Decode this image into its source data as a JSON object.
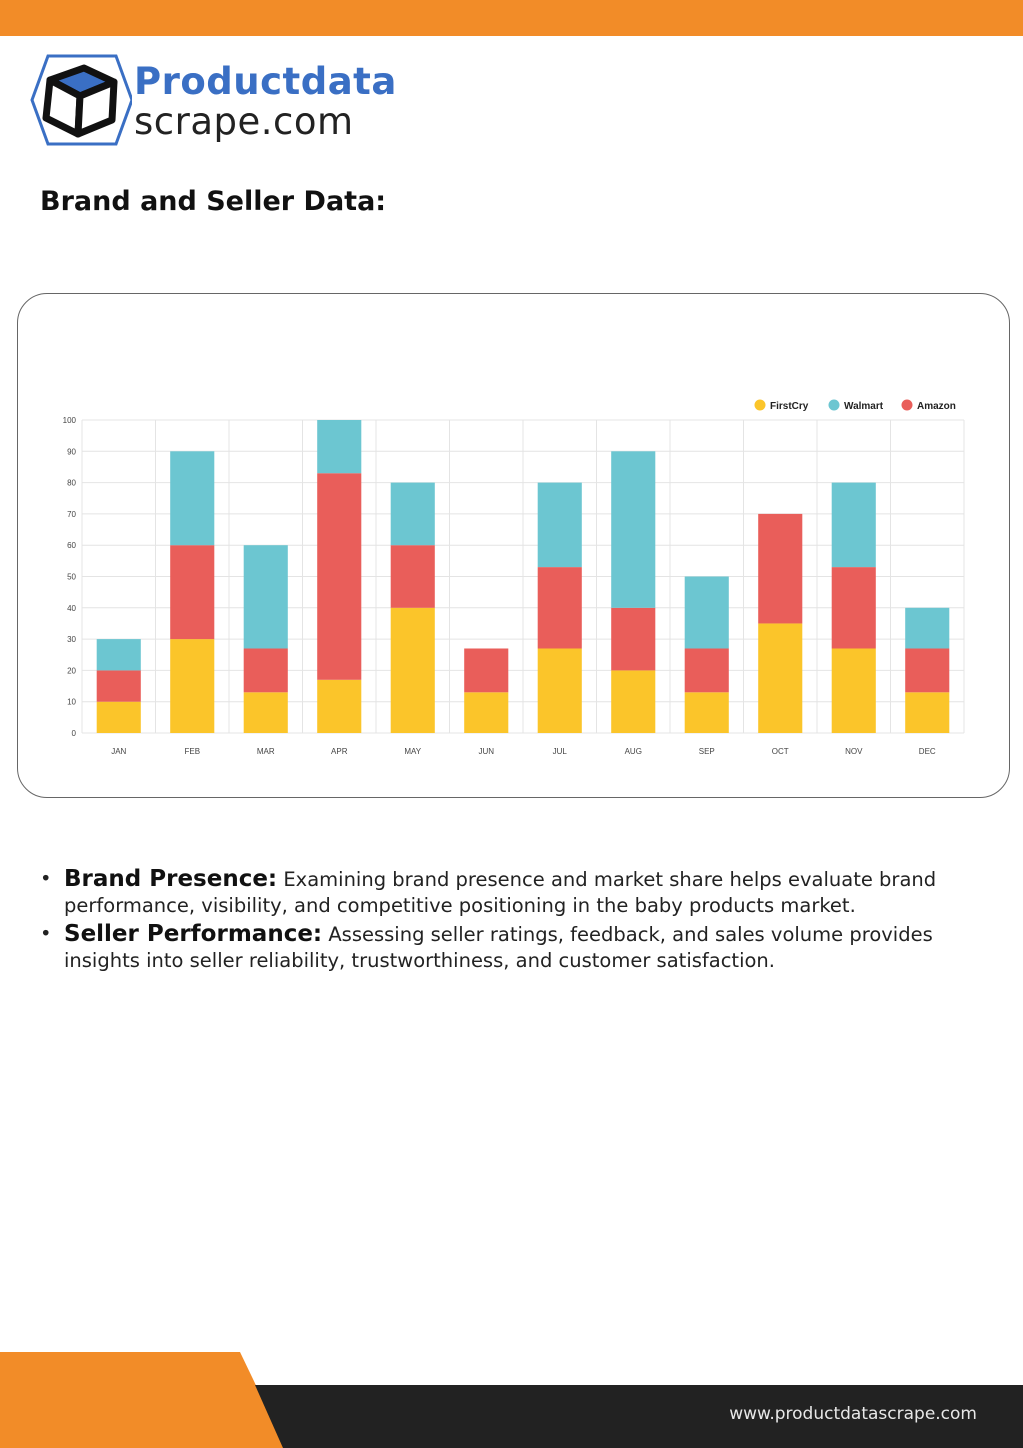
{
  "header": {
    "bar_color": "#f28c28"
  },
  "logo": {
    "line1": "Productdata",
    "line2": "scrape.com",
    "icon": "cube-icon",
    "accent": "#3a6fc4"
  },
  "section": {
    "heading": "Brand and Seller Data:"
  },
  "chart_data": {
    "type": "bar",
    "stacked": true,
    "categories": [
      "JAN",
      "FEB",
      "MAR",
      "APR",
      "MAY",
      "JUN",
      "JUL",
      "AUG",
      "SEP",
      "OCT",
      "NOV",
      "DEC"
    ],
    "series": [
      {
        "name": "FirstCry",
        "color": "#fbc52a",
        "values": [
          10,
          30,
          13,
          17,
          40,
          13,
          27,
          20,
          13,
          35,
          27,
          13
        ]
      },
      {
        "name": "Amazon",
        "color": "#e95e5a",
        "values": [
          10,
          30,
          14,
          66,
          20,
          14,
          26,
          20,
          14,
          35,
          26,
          14
        ]
      },
      {
        "name": "Walmart",
        "color": "#6cc6d1",
        "values": [
          10,
          30,
          33,
          17,
          20,
          0,
          27,
          50,
          23,
          0,
          27,
          13
        ]
      }
    ],
    "legend": [
      "FirstCry",
      "Walmart",
      "Amazon"
    ],
    "legend_colors": [
      "#fbc52a",
      "#6cc6d1",
      "#e95e5a"
    ],
    "legend_position": "top-right",
    "yticks": [
      0,
      10,
      20,
      30,
      40,
      50,
      60,
      70,
      80,
      90,
      100
    ],
    "ylim": [
      0,
      100
    ],
    "grid": true
  },
  "bullets": [
    {
      "bold": "Brand Presence:",
      "text": " Examining brand presence and market share helps evaluate brand performance, visibility, and competitive positioning in the baby products market."
    },
    {
      "bold": "Seller Performance:",
      "text": " Assessing seller ratings, feedback, and sales volume provides insights into seller reliability, trustworthiness, and customer satisfaction."
    }
  ],
  "bullet_glyph": "•",
  "footer": {
    "url": "www.productdatascrape.com"
  }
}
